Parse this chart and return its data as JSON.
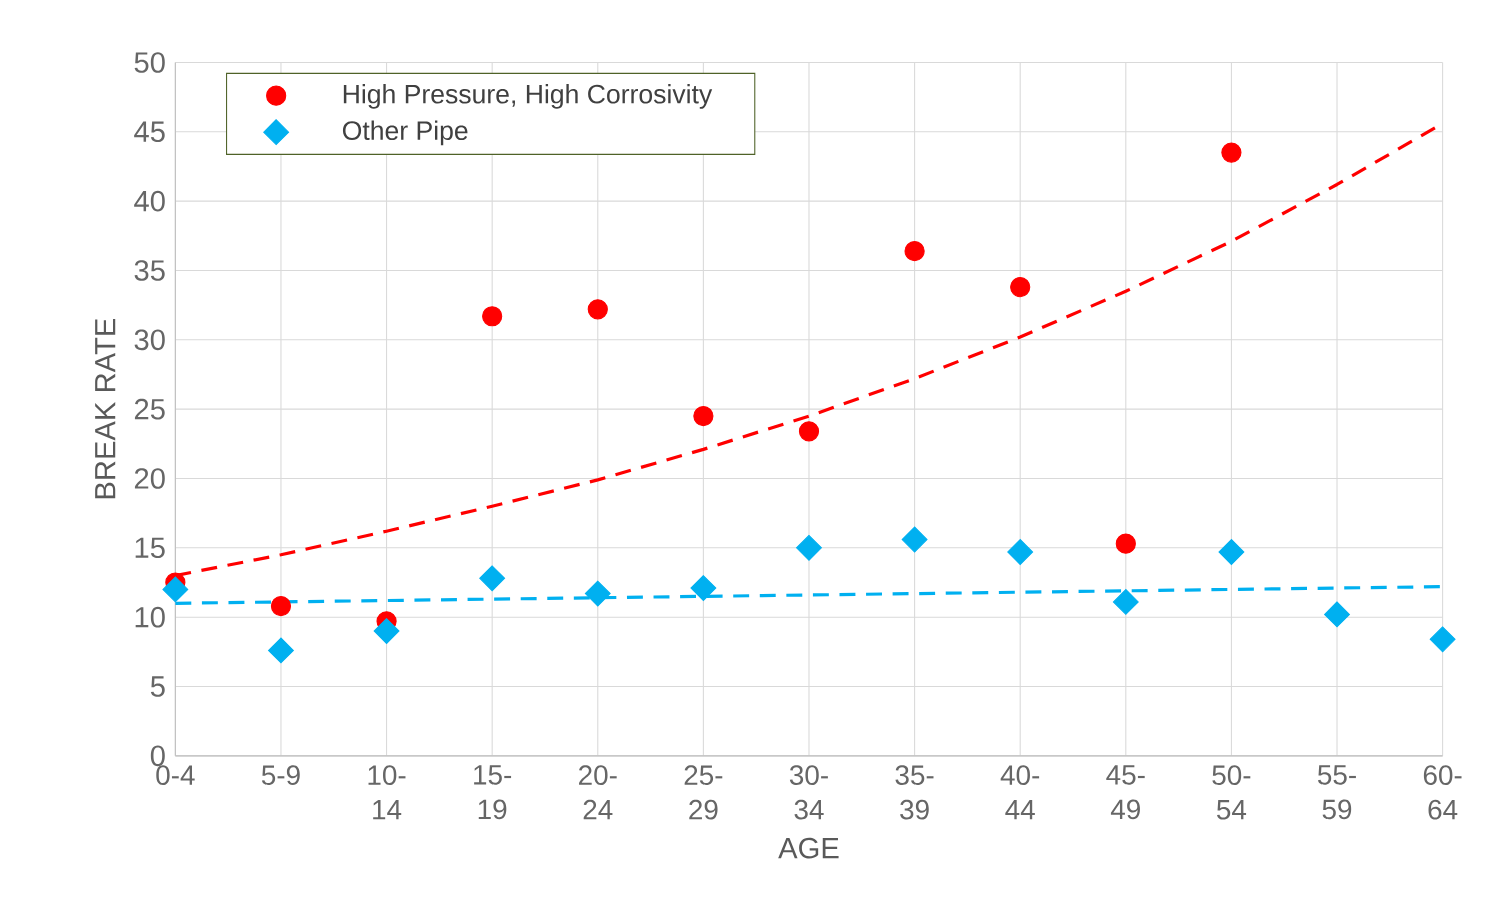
{
  "chart_data": {
    "type": "scatter",
    "xlabel": "AGE",
    "ylabel": "BREAK RATE",
    "categories": [
      "0-4",
      "5-9",
      "10-14",
      "15-19",
      "20-24",
      "25-29",
      "30-34",
      "35-39",
      "40-44",
      "45-49",
      "50-54",
      "55-59",
      "60-64"
    ],
    "series": [
      {
        "name": "High Pressure, High Corrosivity",
        "color": "#ff0000",
        "marker": "circle",
        "values": [
          12.5,
          10.8,
          9.7,
          31.7,
          32.2,
          24.5,
          23.4,
          36.4,
          33.8,
          15.3,
          43.5,
          null,
          null
        ]
      },
      {
        "name": "Other Pipe",
        "color": "#00b0f0",
        "marker": "diamond",
        "values": [
          12.0,
          7.6,
          9.0,
          12.8,
          11.7,
          12.1,
          15.0,
          15.6,
          14.7,
          11.1,
          14.7,
          10.2,
          8.4
        ]
      },
      {
        "type": "line",
        "color": "#ff0000",
        "line_style": "dashed",
        "marker": "none",
        "values": [
          13.0,
          14.5,
          16.2,
          18.0,
          19.9,
          22.1,
          24.5,
          27.2,
          30.2,
          33.5,
          37.1,
          41.2,
          45.6
        ]
      },
      {
        "type": "line",
        "color": "#00b0f0",
        "line_style": "dashed",
        "marker": "none",
        "values": [
          11.0,
          11.1,
          11.2,
          11.3,
          11.4,
          11.5,
          11.6,
          11.7,
          11.8,
          11.9,
          12.0,
          12.1,
          12.2
        ]
      }
    ],
    "ylim": [
      0,
      50
    ],
    "yticks": [
      0,
      5,
      10,
      15,
      20,
      25,
      30,
      35,
      40,
      45,
      50
    ],
    "grid": true,
    "legend": "top left"
  }
}
